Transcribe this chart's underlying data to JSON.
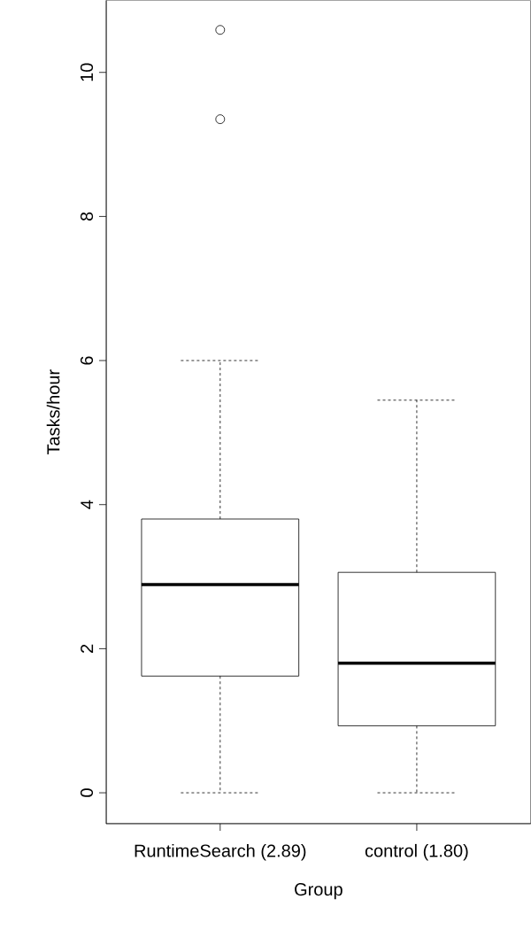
{
  "chart_data": {
    "type": "box",
    "xlabel": "Group",
    "ylabel": "Tasks/hour",
    "categories": [
      "RuntimeSearch (2.89)",
      "control (1.80)"
    ],
    "boxes": [
      {
        "low": 0,
        "q1": 1.62,
        "median": 2.89,
        "q3": 3.8,
        "high": 6.0,
        "outliers": [
          9.35,
          10.59
        ]
      },
      {
        "low": 0,
        "q1": 0.93,
        "median": 1.8,
        "q3": 3.06,
        "high": 5.45
      }
    ],
    "ylim": [
      -0.43,
      11.0
    ],
    "yticks": [
      0,
      2,
      4,
      6,
      8,
      10
    ],
    "marker": "circle",
    "grid": false
  }
}
